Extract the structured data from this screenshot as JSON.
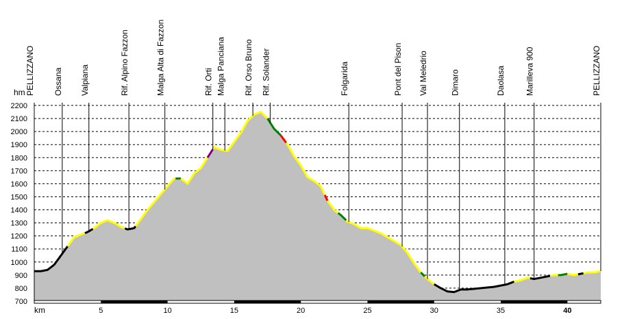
{
  "chart_data": {
    "type": "area",
    "xlabel": "km",
    "ylabel": "hm",
    "xlim": [
      0,
      42.5
    ],
    "ylim": [
      700,
      2200
    ],
    "x_ticks": [
      5,
      10,
      15,
      20,
      25,
      30,
      35,
      40
    ],
    "x_tick_labels": [
      "5",
      "10",
      "15",
      "20",
      "25",
      "30",
      "35",
      "40"
    ],
    "bold_tick": 40,
    "y_ticks": [
      700,
      800,
      900,
      1000,
      1100,
      1200,
      1300,
      1400,
      1500,
      1600,
      1700,
      1800,
      1900,
      2000,
      2100,
      2200
    ],
    "grid": true,
    "fill_color": "#c0c0c0",
    "profile": {
      "x": [
        0,
        0.5,
        1,
        1.5,
        2,
        2.5,
        3,
        3.5,
        4,
        4.5,
        5,
        5.5,
        6,
        6.5,
        7,
        7.5,
        8,
        8.5,
        9,
        9.5,
        10,
        10.5,
        11,
        11.5,
        12,
        12.5,
        13,
        13.5,
        14,
        14.5,
        15,
        15.5,
        16,
        16.5,
        17,
        17.5,
        18,
        18.5,
        19,
        19.5,
        20,
        20.5,
        21,
        21.5,
        22,
        22.5,
        23,
        23.5,
        24,
        24.5,
        25,
        25.5,
        26,
        26.5,
        27,
        27.5,
        28,
        28.5,
        29,
        29.5,
        30,
        30.5,
        31,
        31.5,
        32,
        32.5,
        33,
        33.5,
        34,
        34.5,
        35,
        35.5,
        36,
        36.5,
        37,
        37.5,
        38,
        38.5,
        39,
        39.5,
        40,
        40.5,
        41,
        41.5,
        42,
        42.5
      ],
      "y": [
        930,
        930,
        940,
        980,
        1050,
        1120,
        1190,
        1210,
        1230,
        1260,
        1300,
        1320,
        1300,
        1270,
        1250,
        1260,
        1330,
        1400,
        1460,
        1520,
        1580,
        1640,
        1640,
        1600,
        1680,
        1720,
        1800,
        1880,
        1860,
        1850,
        1920,
        1990,
        2080,
        2130,
        2150,
        2100,
        2020,
        1970,
        1900,
        1810,
        1740,
        1650,
        1620,
        1580,
        1470,
        1400,
        1360,
        1310,
        1290,
        1260,
        1260,
        1240,
        1220,
        1190,
        1160,
        1130,
        1070,
        990,
        920,
        870,
        830,
        800,
        775,
        770,
        790,
        790,
        795,
        800,
        805,
        810,
        820,
        830,
        850,
        860,
        880,
        870,
        880,
        890,
        900,
        900,
        910,
        900,
        910,
        920,
        920,
        930
      ]
    },
    "track_colors": [
      {
        "from": 0,
        "to": 2.5,
        "color": "#000000"
      },
      {
        "from": 2.5,
        "to": 3.8,
        "color": "#ffff00"
      },
      {
        "from": 3.8,
        "to": 4.4,
        "color": "#000000"
      },
      {
        "from": 4.4,
        "to": 6.8,
        "color": "#ffff00"
      },
      {
        "from": 6.8,
        "to": 7.6,
        "color": "#000000"
      },
      {
        "from": 7.6,
        "to": 10.6,
        "color": "#ffff00"
      },
      {
        "from": 10.6,
        "to": 11.0,
        "color": "#008000"
      },
      {
        "from": 11.0,
        "to": 13.0,
        "color": "#ffff00"
      },
      {
        "from": 13.0,
        "to": 13.4,
        "color": "#800080"
      },
      {
        "from": 13.4,
        "to": 17.5,
        "color": "#ffff00"
      },
      {
        "from": 17.5,
        "to": 18.5,
        "color": "#008000"
      },
      {
        "from": 18.5,
        "to": 18.9,
        "color": "#ff0000"
      },
      {
        "from": 18.9,
        "to": 21.8,
        "color": "#ffff00"
      },
      {
        "from": 21.8,
        "to": 22.0,
        "color": "#ff0000"
      },
      {
        "from": 22.0,
        "to": 22.8,
        "color": "#ffff00"
      },
      {
        "from": 22.8,
        "to": 23.4,
        "color": "#008000"
      },
      {
        "from": 23.4,
        "to": 29.0,
        "color": "#ffff00"
      },
      {
        "from": 29.0,
        "to": 29.3,
        "color": "#008000"
      },
      {
        "from": 29.3,
        "to": 30.0,
        "color": "#ffff00"
      },
      {
        "from": 30.0,
        "to": 36.0,
        "color": "#000000"
      },
      {
        "from": 36.0,
        "to": 37.2,
        "color": "#ffff00"
      },
      {
        "from": 37.2,
        "to": 38.7,
        "color": "#000000"
      },
      {
        "from": 38.7,
        "to": 39.3,
        "color": "#ffff00"
      },
      {
        "from": 39.3,
        "to": 40.0,
        "color": "#008000"
      },
      {
        "from": 40.0,
        "to": 40.8,
        "color": "#ffff00"
      },
      {
        "from": 40.8,
        "to": 41.2,
        "color": "#000000"
      },
      {
        "from": 41.2,
        "to": 42.5,
        "color": "#ffff00"
      }
    ],
    "waypoints": [
      {
        "name": "PELLIZZANO",
        "x": 0.0
      },
      {
        "name": "Ossana",
        "x": 2.1
      },
      {
        "name": "Valpiana",
        "x": 4.1
      },
      {
        "name": "Rif. Alpino Fazzon",
        "x": 7.1
      },
      {
        "name": "Malga Alta di Fazzon",
        "x": 9.8
      },
      {
        "name": "Rif. Orti",
        "x": 13.4
      },
      {
        "name": "Malga Panciana",
        "x": 14.3
      },
      {
        "name": "Rif. Orso Bruno",
        "x": 16.4
      },
      {
        "name": "Rif. Solander",
        "x": 17.7
      },
      {
        "name": "Folgarida",
        "x": 23.6
      },
      {
        "name": "Pont del Pison",
        "x": 27.6
      },
      {
        "name": "Val Meledrio",
        "x": 29.5
      },
      {
        "name": "Dimaro",
        "x": 31.9
      },
      {
        "name": "Daolasa",
        "x": 35.3
      },
      {
        "name": "Marilleva 900",
        "x": 37.5
      },
      {
        "name": "PELLIZZANO",
        "x": 42.5
      }
    ]
  }
}
